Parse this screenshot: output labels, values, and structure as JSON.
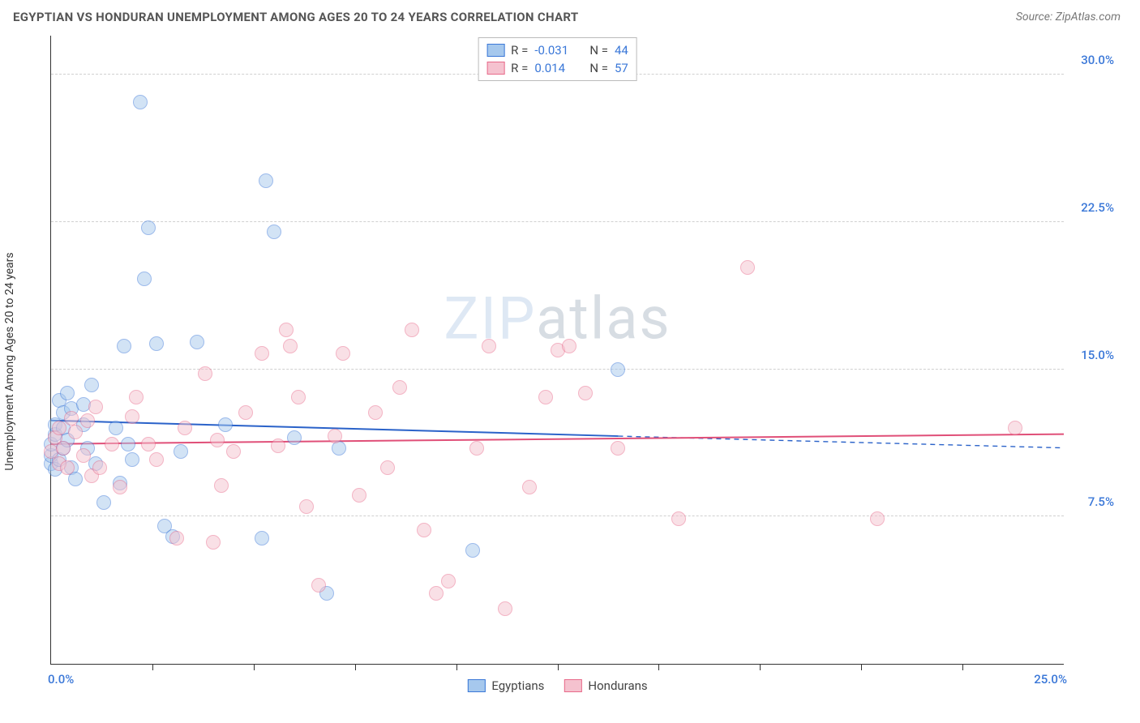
{
  "header": {
    "title": "EGYPTIAN VS HONDURAN UNEMPLOYMENT AMONG AGES 20 TO 24 YEARS CORRELATION CHART",
    "source": "Source: ZipAtlas.com"
  },
  "chart": {
    "type": "scatter",
    "ylabel": "Unemployment Among Ages 20 to 24 years",
    "watermark_zip": "ZIP",
    "watermark_atlas": "atlas",
    "background_color": "#ffffff",
    "grid_color": "#d0d0d0",
    "axis_color": "#333333",
    "xlim": [
      0,
      25
    ],
    "ylim": [
      0,
      32
    ],
    "y_ticks": [
      7.5,
      15.0,
      22.5,
      30.0
    ],
    "y_tick_labels": [
      "7.5%",
      "15.0%",
      "22.5%",
      "30.0%"
    ],
    "y_tick_color": "#3b78d8",
    "x_minor_ticks": [
      2.5,
      5.0,
      7.5,
      10.0,
      12.5,
      15.0,
      17.5,
      20.0,
      22.5
    ],
    "x_tick_labels": [
      {
        "x": 0,
        "text": "0.0%",
        "color": "#3b78d8"
      },
      {
        "x": 25,
        "text": "25.0%",
        "color": "#3b78d8"
      }
    ],
    "legend_top": {
      "rows": [
        {
          "swatch_fill": "#a6c8ed",
          "swatch_border": "#3b78d8",
          "r_label": "R =",
          "r_value": "-0.031",
          "n_label": "N =",
          "n_value": "44",
          "value_color": "#3b78d8"
        },
        {
          "swatch_fill": "#f5c2cf",
          "swatch_border": "#e86a8a",
          "r_label": "R =",
          "r_value": "0.014",
          "n_label": "N =",
          "n_value": "57",
          "value_color": "#3b78d8"
        }
      ]
    },
    "legend_bottom": [
      {
        "swatch_fill": "#a6c8ed",
        "swatch_border": "#3b78d8",
        "label": "Egyptians"
      },
      {
        "swatch_fill": "#f5c2cf",
        "swatch_border": "#e86a8a",
        "label": "Hondurans"
      }
    ],
    "point_radius": 9,
    "point_border_width": 1.2,
    "point_fill_opacity": 0.5,
    "series": [
      {
        "name": "Egyptians",
        "fill": "#a6c8ed",
        "stroke": "#3b78d8",
        "regression": {
          "x1": 0,
          "y1": 12.4,
          "x2": 14.0,
          "y2": 11.6,
          "x2_dash": 25,
          "y2_dash": 11.0,
          "color": "#2a62c9",
          "width": 2
        },
        "points": [
          [
            0.0,
            10.2
          ],
          [
            0.0,
            10.6
          ],
          [
            0.0,
            11.2
          ],
          [
            0.1,
            9.9
          ],
          [
            0.1,
            11.7
          ],
          [
            0.1,
            12.2
          ],
          [
            0.2,
            10.4
          ],
          [
            0.2,
            13.4
          ],
          [
            0.3,
            11.0
          ],
          [
            0.3,
            12.0
          ],
          [
            0.3,
            12.8
          ],
          [
            0.4,
            13.8
          ],
          [
            0.4,
            11.4
          ],
          [
            0.5,
            10.0
          ],
          [
            0.5,
            13.0
          ],
          [
            0.6,
            9.4
          ],
          [
            0.8,
            12.2
          ],
          [
            0.8,
            13.2
          ],
          [
            0.9,
            11.0
          ],
          [
            1.0,
            14.2
          ],
          [
            1.1,
            10.2
          ],
          [
            1.3,
            8.2
          ],
          [
            1.6,
            12.0
          ],
          [
            1.7,
            9.2
          ],
          [
            1.8,
            16.2
          ],
          [
            1.9,
            11.2
          ],
          [
            2.0,
            10.4
          ],
          [
            2.2,
            28.6
          ],
          [
            2.3,
            19.6
          ],
          [
            2.4,
            22.2
          ],
          [
            2.6,
            16.3
          ],
          [
            2.8,
            7.0
          ],
          [
            3.0,
            6.5
          ],
          [
            3.2,
            10.8
          ],
          [
            3.6,
            16.4
          ],
          [
            4.3,
            12.2
          ],
          [
            5.2,
            6.4
          ],
          [
            5.3,
            24.6
          ],
          [
            5.5,
            22.0
          ],
          [
            6.0,
            11.5
          ],
          [
            6.8,
            3.6
          ],
          [
            7.1,
            11.0
          ],
          [
            10.4,
            5.8
          ],
          [
            14.0,
            15.0
          ]
        ]
      },
      {
        "name": "Hondurans",
        "fill": "#f5c2cf",
        "stroke": "#e86a8a",
        "regression": {
          "x1": 0,
          "y1": 11.2,
          "x2": 25,
          "y2": 11.7,
          "color": "#e04f78",
          "width": 2
        },
        "points": [
          [
            0.0,
            10.8
          ],
          [
            0.1,
            11.5
          ],
          [
            0.2,
            10.2
          ],
          [
            0.2,
            12.0
          ],
          [
            0.3,
            11.0
          ],
          [
            0.4,
            10.0
          ],
          [
            0.5,
            12.5
          ],
          [
            0.6,
            11.8
          ],
          [
            0.8,
            10.6
          ],
          [
            0.9,
            12.4
          ],
          [
            1.0,
            9.6
          ],
          [
            1.1,
            13.1
          ],
          [
            1.2,
            10.0
          ],
          [
            1.5,
            11.2
          ],
          [
            1.7,
            9.0
          ],
          [
            2.0,
            12.6
          ],
          [
            2.1,
            13.6
          ],
          [
            2.4,
            11.2
          ],
          [
            2.6,
            10.4
          ],
          [
            3.1,
            6.4
          ],
          [
            3.3,
            12.0
          ],
          [
            3.8,
            14.8
          ],
          [
            4.1,
            11.4
          ],
          [
            4.2,
            9.1
          ],
          [
            4.5,
            10.8
          ],
          [
            4.8,
            12.8
          ],
          [
            5.2,
            15.8
          ],
          [
            5.6,
            11.1
          ],
          [
            5.9,
            16.2
          ],
          [
            6.1,
            13.6
          ],
          [
            6.3,
            8.0
          ],
          [
            6.6,
            4.0
          ],
          [
            7.0,
            11.6
          ],
          [
            7.2,
            15.8
          ],
          [
            7.6,
            8.6
          ],
          [
            8.0,
            12.8
          ],
          [
            8.3,
            10.0
          ],
          [
            8.6,
            14.1
          ],
          [
            8.9,
            17.0
          ],
          [
            9.2,
            6.8
          ],
          [
            9.5,
            3.6
          ],
          [
            9.8,
            4.2
          ],
          [
            10.5,
            11.0
          ],
          [
            10.8,
            16.2
          ],
          [
            11.2,
            2.8
          ],
          [
            11.8,
            9.0
          ],
          [
            12.2,
            13.6
          ],
          [
            12.5,
            16.0
          ],
          [
            12.8,
            16.2
          ],
          [
            13.2,
            13.8
          ],
          [
            14.0,
            11.0
          ],
          [
            15.5,
            7.4
          ],
          [
            17.2,
            20.2
          ],
          [
            20.4,
            7.4
          ],
          [
            23.8,
            12.0
          ],
          [
            4.0,
            6.2
          ],
          [
            5.8,
            17.0
          ]
        ]
      }
    ]
  }
}
